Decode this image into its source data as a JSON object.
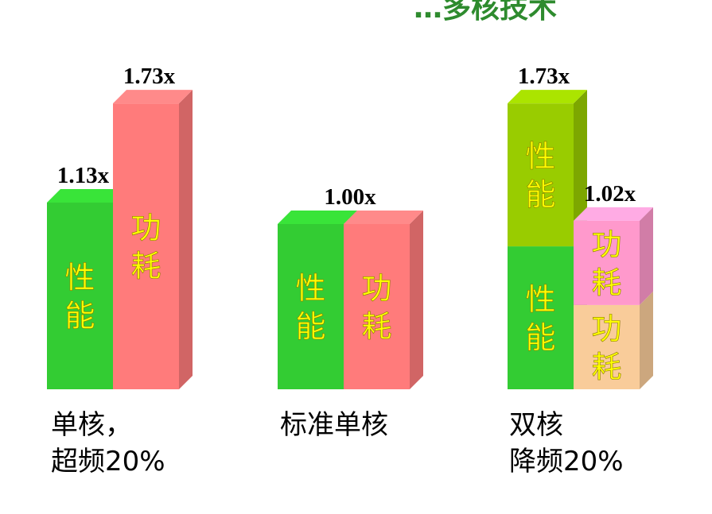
{
  "slide": {
    "title_fragment": "…多核技术"
  },
  "chart_data": {
    "type": "bar",
    "title": "",
    "groups": [
      {
        "name": "单核，超频20%",
        "caption_lines": [
          "单核，",
          "超频20%"
        ],
        "bars": [
          {
            "segments": [
              {
                "label": "性能",
                "value": 1.13,
                "color": "#33cc33"
              }
            ],
            "value_label": "1.13x"
          },
          {
            "segments": [
              {
                "label": "功耗",
                "value": 1.73,
                "color": "#ff7b7b"
              }
            ],
            "value_label": "1.73x"
          }
        ]
      },
      {
        "name": "标准单核",
        "caption_lines": [
          "标准单核"
        ],
        "bars": [
          {
            "segments": [
              {
                "label": "性能",
                "value": 1.0,
                "color": "#33cc33"
              }
            ],
            "value_label": ""
          },
          {
            "segments": [
              {
                "label": "功耗",
                "value": 1.0,
                "color": "#ff7b7b"
              }
            ],
            "value_label": ""
          }
        ],
        "group_label": "1.00x"
      },
      {
        "name": "双核降频20%",
        "caption_lines": [
          "双核",
          "降频20%"
        ],
        "bars": [
          {
            "segments": [
              {
                "label": "性能",
                "value": 0.865,
                "color": "#33cc33"
              },
              {
                "label": "性能",
                "value": 0.865,
                "color": "#99cc00"
              }
            ],
            "value_label": "1.73x"
          },
          {
            "segments": [
              {
                "label": "功耗",
                "value": 0.51,
                "color": "#f9cc9a"
              },
              {
                "label": "功耗",
                "value": 0.51,
                "color": "#ff99cc"
              }
            ],
            "value_label": "1.02x"
          }
        ]
      }
    ],
    "ylim": [
      0,
      1.73
    ],
    "xlabel": "",
    "ylabel": ""
  }
}
